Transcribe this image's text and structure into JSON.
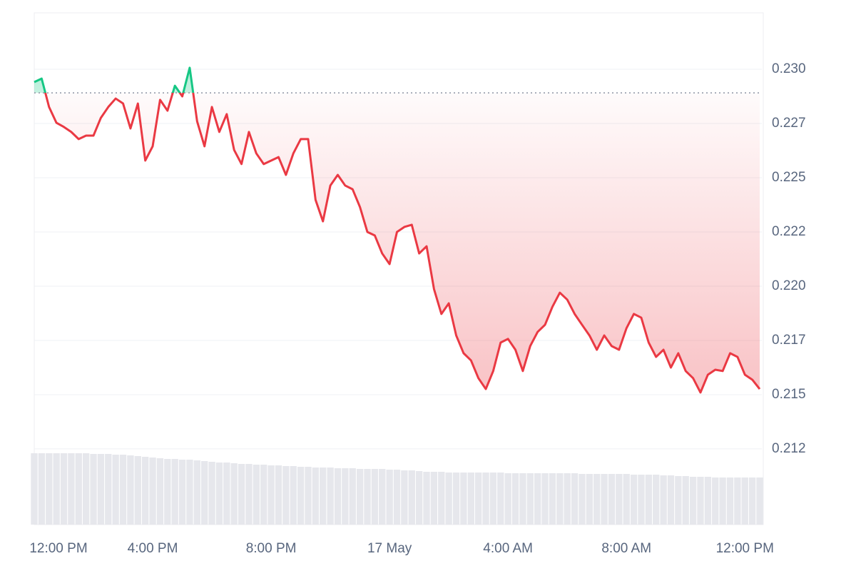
{
  "chart_data": {
    "type": "line",
    "categories": [
      "12:00 PM",
      null,
      null,
      null,
      null,
      null,
      null,
      null,
      null,
      null,
      null,
      null,
      null,
      null,
      null,
      null,
      "4:00 PM",
      null,
      null,
      null,
      null,
      null,
      null,
      null,
      null,
      null,
      null,
      null,
      null,
      null,
      null,
      null,
      "8:00 PM",
      null,
      null,
      null,
      null,
      null,
      null,
      null,
      null,
      null,
      null,
      null,
      null,
      null,
      null,
      null,
      "17 May",
      null,
      null,
      null,
      null,
      null,
      null,
      null,
      null,
      null,
      null,
      null,
      null,
      null,
      null,
      null,
      "4:00 AM",
      null,
      null,
      null,
      null,
      null,
      null,
      null,
      null,
      null,
      null,
      null,
      null,
      null,
      null,
      null,
      "8:00 AM",
      null,
      null,
      null,
      null,
      null,
      null,
      null,
      null,
      null,
      null,
      null,
      null,
      null,
      null,
      null,
      "12:00 PM",
      null,
      null
    ],
    "values": [
      0.22941,
      0.22957,
      0.22826,
      0.22753,
      0.22734,
      0.22711,
      0.22678,
      0.22694,
      0.22694,
      0.22776,
      0.22826,
      0.22865,
      0.22842,
      0.22727,
      0.22842,
      0.22579,
      0.22645,
      0.22859,
      0.22809,
      0.22924,
      0.22875,
      0.23007,
      0.2276,
      0.22645,
      0.22826,
      0.22711,
      0.22793,
      0.22628,
      0.22563,
      0.22711,
      0.22612,
      0.22563,
      0.22579,
      0.22595,
      0.22513,
      0.22612,
      0.22678,
      0.22678,
      0.22398,
      0.22299,
      0.22464,
      0.22513,
      0.22464,
      0.22447,
      0.22365,
      0.2225,
      0.22234,
      0.22151,
      0.22102,
      0.2225,
      0.22273,
      0.22283,
      0.22151,
      0.22184,
      0.21987,
      0.21872,
      0.21921,
      0.21773,
      0.21691,
      0.21658,
      0.21576,
      0.21526,
      0.21609,
      0.2174,
      0.21757,
      0.21707,
      0.21609,
      0.21724,
      0.21789,
      0.21822,
      0.21905,
      0.2197,
      0.21938,
      0.21872,
      0.21822,
      0.21773,
      0.21707,
      0.21773,
      0.21724,
      0.21707,
      0.21806,
      0.21872,
      0.21855,
      0.2174,
      0.21674,
      0.21707,
      0.21625,
      0.21691,
      0.21609,
      0.21576,
      0.2151,
      0.21592,
      0.21615,
      0.21609,
      0.21691,
      0.21674,
      0.21592,
      0.21569,
      0.21526
    ],
    "volume": [
      100,
      100,
      100,
      100,
      100,
      100,
      100,
      100,
      99,
      99,
      99,
      98,
      98,
      97,
      96,
      95,
      94,
      93,
      92,
      92,
      91,
      91,
      90,
      89,
      88,
      87,
      87,
      86,
      85,
      85,
      84,
      84,
      83,
      83,
      82,
      82,
      81,
      81,
      80,
      80,
      80,
      79,
      79,
      79,
      78,
      78,
      78,
      78,
      77,
      77,
      76,
      76,
      75,
      74,
      74,
      74,
      73,
      73,
      73,
      73,
      73,
      73,
      73,
      73,
      72,
      72,
      72,
      72,
      72,
      72,
      72,
      72,
      72,
      72,
      71,
      71,
      71,
      71,
      71,
      71,
      71,
      70,
      70,
      70,
      70,
      69,
      69,
      68,
      68,
      67,
      67,
      67,
      66,
      66,
      66,
      66,
      66,
      66,
      66
    ],
    "reference_line": 0.22891,
    "color": "#ea3943",
    "up_color": "#16c784",
    "volume_color": "#e6e7ec",
    "ylim": [
      0.20901,
      0.2326
    ],
    "yticks": [
      {
        "value": 0.2125,
        "label": "0.212"
      },
      {
        "value": 0.215,
        "label": "0.215"
      },
      {
        "value": 0.2175,
        "label": "0.217"
      },
      {
        "value": 0.22,
        "label": "0.220"
      },
      {
        "value": 0.2225,
        "label": "0.222"
      },
      {
        "value": 0.225,
        "label": "0.225"
      },
      {
        "value": 0.2275,
        "label": "0.227"
      },
      {
        "value": 0.23,
        "label": "0.230"
      }
    ],
    "grid": true
  }
}
